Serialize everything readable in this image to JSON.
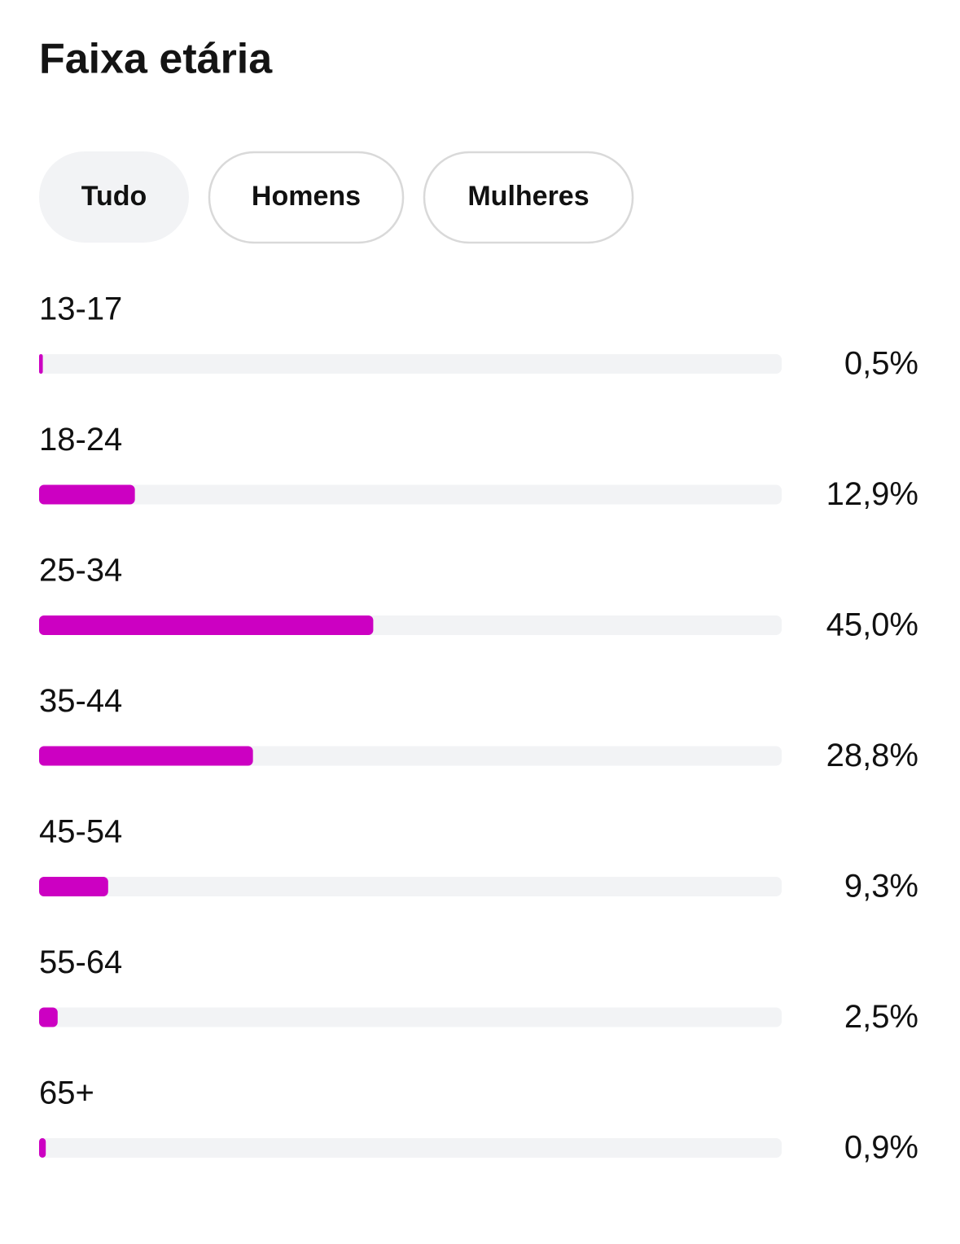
{
  "filters": [
    "Tudo",
    "Homens",
    "Mulheres"
  ],
  "chart_data": {
    "type": "bar",
    "orientation": "horizontal",
    "title": "Faixa etária",
    "categories": [
      "13-17",
      "18-24",
      "25-34",
      "35-44",
      "45-54",
      "55-64",
      "65+"
    ],
    "values": [
      0.5,
      12.9,
      45.0,
      28.8,
      9.3,
      2.5,
      0.9
    ],
    "value_labels": [
      "0,5%",
      "12,9%",
      "45,0%",
      "28,8%",
      "9,3%",
      "2,5%",
      "0,9%"
    ],
    "color": "#cc00c2",
    "xlim": [
      0,
      100
    ]
  }
}
